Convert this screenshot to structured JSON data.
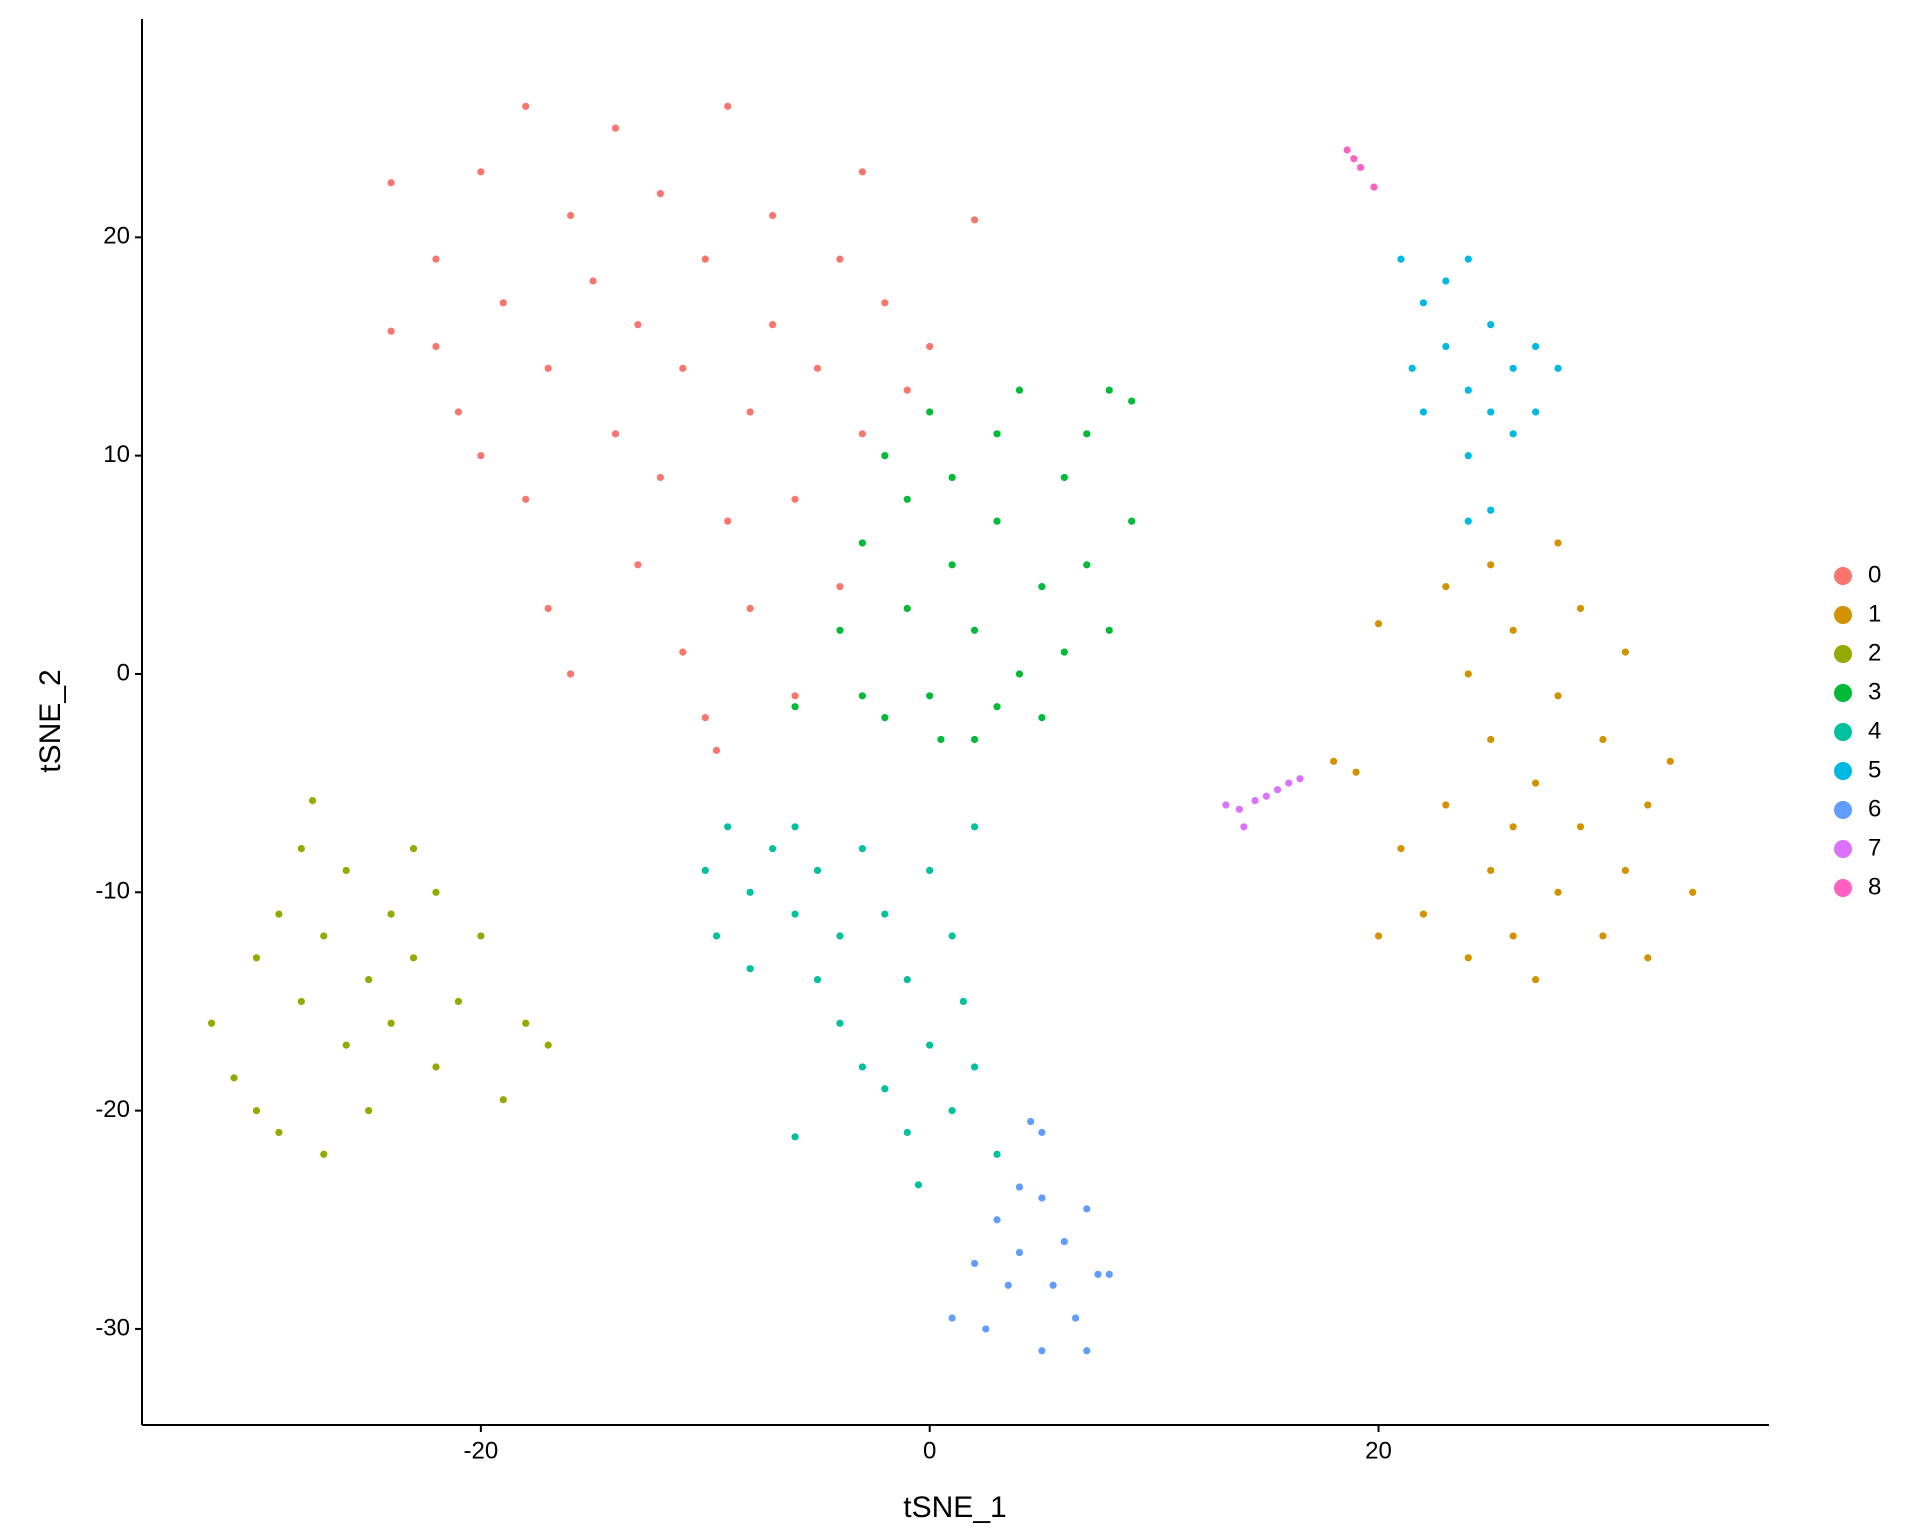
{
  "chart_data": {
    "type": "scatter",
    "x_label": "tSNE_1",
    "y_label": "tSNE_2",
    "xlim": [
      -35.1,
      37.4
    ],
    "ylim": [
      -34.4,
      30.0
    ],
    "xticks": [
      -20,
      0,
      20
    ],
    "yticks": [
      -30,
      -20,
      -10,
      0,
      10,
      20
    ],
    "grid": false,
    "legend_position": "right",
    "series": [
      {
        "name": "0",
        "color": "#F8766D",
        "x": [
          -24,
          -24,
          -22,
          -21,
          -20,
          -19,
          -18,
          -18,
          -17,
          -17,
          -16,
          -16,
          -15,
          -14,
          -14,
          -13,
          -13,
          -12,
          -12,
          -11,
          -11,
          -10,
          -10,
          -9,
          -9,
          -8,
          -8,
          -7,
          -7,
          -6,
          -6,
          -5,
          -4,
          -4,
          -3,
          -3,
          -2,
          -1,
          0,
          2,
          -9.5,
          -20,
          -22
        ],
        "values": [
          22.5,
          15.7,
          19,
          12,
          23,
          17,
          26,
          8,
          14,
          3,
          21,
          0,
          18,
          11,
          25,
          5,
          16,
          22,
          9,
          1,
          14,
          19,
          -2,
          7,
          26,
          12,
          3,
          21,
          16,
          8,
          -1,
          14,
          19,
          4,
          23,
          11,
          17,
          13,
          15,
          20.8,
          -3.5,
          10,
          15
        ]
      },
      {
        "name": "1",
        "color": "#D39200",
        "x": [
          18,
          19,
          20,
          21,
          22,
          23,
          23,
          24,
          24,
          25,
          25,
          25,
          26,
          26,
          27,
          27,
          28,
          28,
          28,
          29,
          29,
          30,
          30,
          31,
          31,
          32,
          32,
          33,
          34,
          20,
          26
        ],
        "values": [
          -4,
          -4.5,
          -12,
          -8,
          -11,
          4,
          -6,
          0,
          -13,
          5,
          -3,
          -9,
          2,
          -12,
          -5,
          -14,
          6,
          -1,
          -10,
          3,
          -7,
          -12,
          -3,
          1,
          -9,
          -6,
          -13,
          -4,
          -10,
          2.3,
          -7
        ]
      },
      {
        "name": "2",
        "color": "#93AA00",
        "x": [
          -32,
          -31,
          -30,
          -30,
          -29,
          -29,
          -28,
          -28,
          -27,
          -27,
          -26,
          -26,
          -25,
          -25,
          -24,
          -24,
          -23,
          -23,
          -22,
          -22,
          -21,
          -20,
          -19,
          -18,
          -17,
          -27.5
        ],
        "values": [
          -16,
          -18.5,
          -13,
          -20,
          -11,
          -21,
          -8,
          -15,
          -12,
          -22,
          -17,
          -9,
          -14,
          -20,
          -11,
          -16,
          -8,
          -13,
          -18,
          -10,
          -15,
          -12,
          -19.5,
          -16,
          -17,
          -5.8
        ]
      },
      {
        "name": "3",
        "color": "#00BA38",
        "x": [
          -4,
          -3,
          -3,
          -2,
          -2,
          -1,
          -1,
          0,
          0,
          1,
          1,
          2,
          2,
          3,
          3,
          4,
          4,
          5,
          5,
          6,
          6,
          7,
          7,
          8,
          8,
          9,
          9,
          -6,
          3,
          0.5
        ],
        "values": [
          2,
          -1,
          6,
          10,
          -2,
          3,
          8,
          12,
          -1,
          5,
          9,
          -3,
          2,
          11,
          7,
          0,
          13,
          4,
          -2,
          9,
          1,
          5,
          11,
          2,
          13,
          7,
          12.5,
          -1.5,
          -1.5,
          -3
        ]
      },
      {
        "name": "4",
        "color": "#00C19F",
        "x": [
          -10,
          -9.5,
          -9,
          -8,
          -8,
          -7,
          -6,
          -6,
          -5,
          -5,
          -4,
          -4,
          -3,
          -3,
          -2,
          -2,
          -1,
          -1,
          0,
          0,
          1,
          1,
          2,
          2,
          3,
          -6,
          -0.5,
          1.5
        ],
        "values": [
          -9,
          -12,
          -7,
          -10,
          -13.5,
          -8,
          -11,
          -7,
          -14,
          -9,
          -12,
          -16,
          -8,
          -18,
          -11,
          -19,
          -14,
          -21,
          -9,
          -17,
          -12,
          -20,
          -7,
          -18,
          -22,
          -21.2,
          -23.4,
          -15
        ]
      },
      {
        "name": "5",
        "color": "#00B9E3",
        "x": [
          21,
          21.5,
          22,
          22,
          23,
          23,
          24,
          24,
          24,
          25,
          25,
          26,
          26,
          27,
          27,
          28,
          24,
          25
        ],
        "values": [
          19,
          14,
          12,
          17,
          18,
          15,
          13,
          19,
          10,
          16,
          12,
          14,
          11,
          15,
          12,
          14,
          7,
          7.5
        ]
      },
      {
        "name": "6",
        "color": "#619CFF",
        "x": [
          1,
          2,
          2.5,
          3,
          3.5,
          4,
          4,
          5,
          5,
          5.5,
          6,
          6.5,
          7,
          7.5,
          7,
          8,
          4.5,
          5
        ],
        "values": [
          -29.5,
          -27,
          -30,
          -25,
          -28,
          -23.5,
          -26.5,
          -31,
          -24,
          -28,
          -26,
          -29.5,
          -24.5,
          -27.5,
          -31,
          -27.5,
          -20.5,
          -21
        ]
      },
      {
        "name": "7",
        "color": "#DB72FB",
        "x": [
          13.2,
          13.8,
          14,
          14.5,
          15,
          15.5,
          16,
          16.5
        ],
        "values": [
          -6,
          -6.2,
          -7,
          -5.8,
          -5.6,
          -5.3,
          -5,
          -4.8
        ]
      },
      {
        "name": "8",
        "color": "#FF61C3",
        "x": [
          18.6,
          18.9,
          19.2,
          19.8
        ],
        "values": [
          24,
          23.6,
          23.2,
          22.3
        ]
      }
    ]
  }
}
